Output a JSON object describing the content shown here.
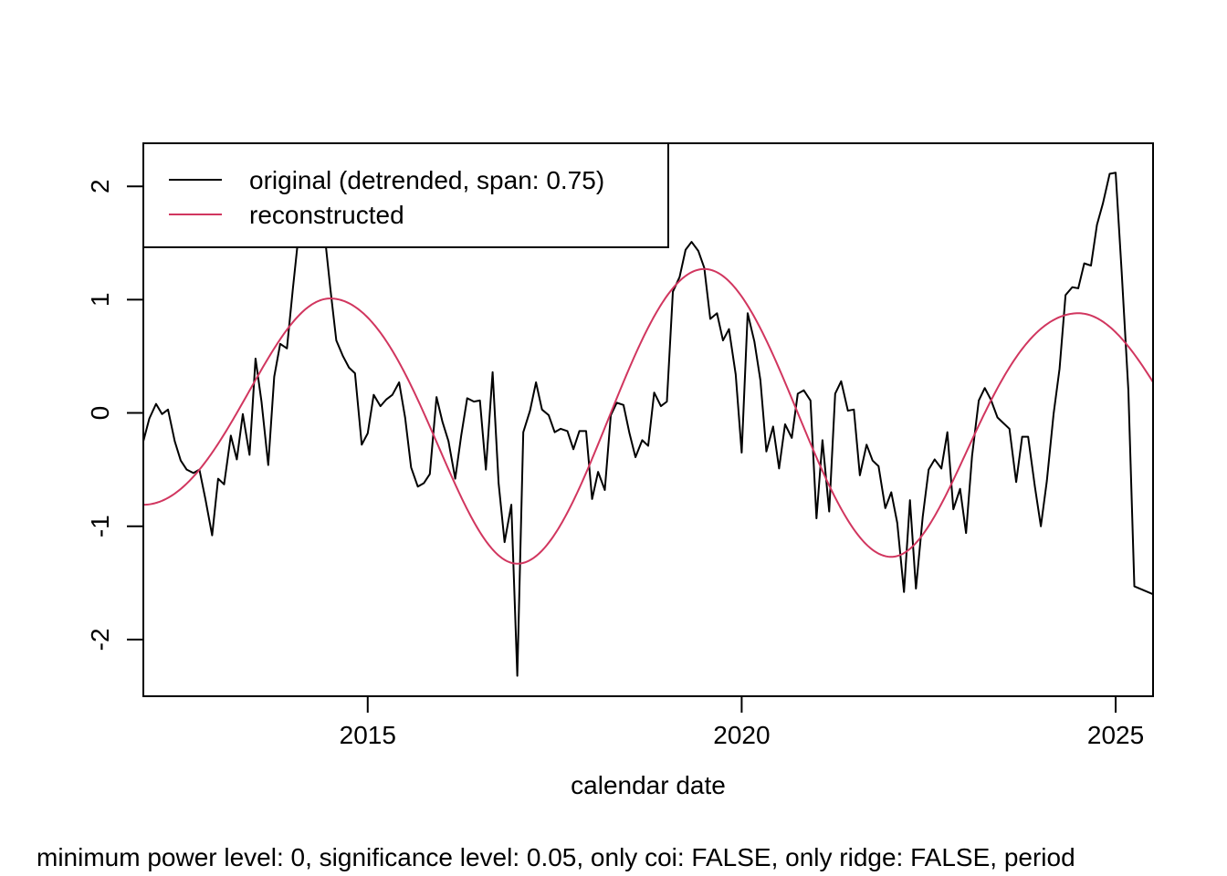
{
  "chart_data": {
    "type": "line",
    "xlabel": "calendar date",
    "subtitle": "minimum power level: 0, significance level: 0.05, only coi: FALSE, only ridge: FALSE, period",
    "xlim": [
      2012.0,
      2025.5
    ],
    "ylim": [
      -2.5,
      2.38
    ],
    "x_ticks": [
      2015,
      2020,
      2025
    ],
    "y_ticks": [
      -2,
      -1,
      0,
      1,
      2
    ],
    "grid": false,
    "legend": {
      "position": "top-left"
    },
    "colors": {
      "original": "#000000",
      "reconstructed": "#D1365F"
    },
    "series": [
      {
        "name": "original (detrended, span: 0.75)",
        "color": "#000000",
        "x": [
          2012.0,
          2012.08,
          2012.17,
          2012.25,
          2012.33,
          2012.42,
          2012.5,
          2012.58,
          2012.67,
          2012.75,
          2012.83,
          2012.92,
          2013.0,
          2013.08,
          2013.17,
          2013.25,
          2013.33,
          2013.42,
          2013.5,
          2013.58,
          2013.67,
          2013.75,
          2013.83,
          2013.92,
          2014.0,
          2014.08,
          2014.17,
          2014.25,
          2014.33,
          2014.42,
          2014.5,
          2014.58,
          2014.67,
          2014.75,
          2014.83,
          2014.92,
          2015.0,
          2015.08,
          2015.17,
          2015.25,
          2015.33,
          2015.42,
          2015.5,
          2015.58,
          2015.67,
          2015.75,
          2015.83,
          2015.92,
          2016.0,
          2016.08,
          2016.17,
          2016.25,
          2016.33,
          2016.42,
          2016.5,
          2016.58,
          2016.67,
          2016.75,
          2016.83,
          2016.92,
          2017.0,
          2017.08,
          2017.17,
          2017.25,
          2017.33,
          2017.42,
          2017.5,
          2017.58,
          2017.67,
          2017.75,
          2017.83,
          2017.92,
          2018.0,
          2018.08,
          2018.17,
          2018.25,
          2018.33,
          2018.42,
          2018.5,
          2018.58,
          2018.67,
          2018.75,
          2018.83,
          2018.92,
          2019.0,
          2019.08,
          2019.17,
          2019.25,
          2019.33,
          2019.42,
          2019.5,
          2019.58,
          2019.67,
          2019.75,
          2019.83,
          2019.92,
          2020.0,
          2020.08,
          2020.17,
          2020.25,
          2020.33,
          2020.42,
          2020.5,
          2020.58,
          2020.67,
          2020.75,
          2020.83,
          2020.92,
          2021.0,
          2021.08,
          2021.17,
          2021.25,
          2021.33,
          2021.42,
          2021.5,
          2021.58,
          2021.67,
          2021.75,
          2021.83,
          2021.92,
          2022.0,
          2022.08,
          2022.17,
          2022.25,
          2022.33,
          2022.42,
          2022.5,
          2022.58,
          2022.67,
          2022.75,
          2022.83,
          2022.92,
          2023.0,
          2023.08,
          2023.17,
          2023.25,
          2023.33,
          2023.42,
          2023.5,
          2023.58,
          2023.67,
          2023.75,
          2023.83,
          2023.92,
          2024.0,
          2024.08,
          2024.17,
          2024.25,
          2024.33,
          2024.42,
          2024.5,
          2024.58,
          2024.67,
          2024.75,
          2024.83,
          2024.92,
          2025.0,
          2025.08,
          2025.17,
          2025.25,
          2025.5
        ],
        "y": [
          -0.25,
          -0.05,
          0.08,
          -0.01,
          0.03,
          -0.25,
          -0.42,
          -0.5,
          -0.53,
          -0.5,
          -0.76,
          -1.08,
          -0.58,
          -0.63,
          -0.2,
          -0.41,
          -0.01,
          -0.37,
          0.48,
          0.1,
          -0.46,
          0.32,
          0.61,
          0.57,
          1.1,
          1.6,
          2.1,
          2.4,
          2.4,
          1.6,
          1.1,
          0.64,
          0.5,
          0.4,
          0.35,
          -0.28,
          -0.18,
          0.16,
          0.06,
          0.12,
          0.16,
          0.27,
          -0.04,
          -0.48,
          -0.65,
          -0.62,
          -0.54,
          0.14,
          -0.08,
          -0.25,
          -0.58,
          -0.2,
          0.13,
          0.1,
          0.11,
          -0.5,
          0.36,
          -0.62,
          -1.14,
          -0.81,
          -2.32,
          -0.17,
          0.02,
          0.27,
          0.03,
          -0.02,
          -0.17,
          -0.14,
          -0.16,
          -0.32,
          -0.16,
          -0.16,
          -0.76,
          -0.52,
          -0.68,
          -0.02,
          0.09,
          0.07,
          -0.18,
          -0.39,
          -0.24,
          -0.29,
          0.18,
          0.06,
          0.1,
          1.07,
          1.2,
          1.44,
          1.51,
          1.43,
          1.28,
          0.83,
          0.88,
          0.64,
          0.74,
          0.34,
          -0.35,
          0.88,
          0.63,
          0.29,
          -0.34,
          -0.12,
          -0.49,
          -0.1,
          -0.22,
          0.17,
          0.2,
          0.11,
          -0.93,
          -0.24,
          -0.87,
          0.17,
          0.28,
          0.02,
          0.03,
          -0.55,
          -0.28,
          -0.42,
          -0.47,
          -0.84,
          -0.7,
          -0.97,
          -1.58,
          -0.77,
          -1.55,
          -0.92,
          -0.5,
          -0.41,
          -0.49,
          -0.17,
          -0.85,
          -0.67,
          -1.06,
          -0.38,
          0.11,
          0.22,
          0.12,
          -0.04,
          -0.09,
          -0.14,
          -0.61,
          -0.21,
          -0.21,
          -0.65,
          -1.0,
          -0.6,
          -0.01,
          0.39,
          1.04,
          1.11,
          1.1,
          1.32,
          1.3,
          1.66,
          1.85,
          2.11,
          2.12,
          1.25,
          0.2,
          -1.53,
          -1.6
        ]
      },
      {
        "name": "reconstructed",
        "color": "#D1365F",
        "phase_center": 2014.5,
        "period_years": 5.0,
        "amplitude_peaks": [
          {
            "x": 2012.0,
            "a": 0.81
          },
          {
            "x": 2014.5,
            "a": 1.01
          },
          {
            "x": 2017.0,
            "a": 1.33
          },
          {
            "x": 2019.5,
            "a": 1.27
          },
          {
            "x": 2022.0,
            "a": 1.27
          },
          {
            "x": 2024.5,
            "a": 0.88
          },
          {
            "x": 2025.5,
            "a": 0.88
          }
        ]
      }
    ]
  }
}
